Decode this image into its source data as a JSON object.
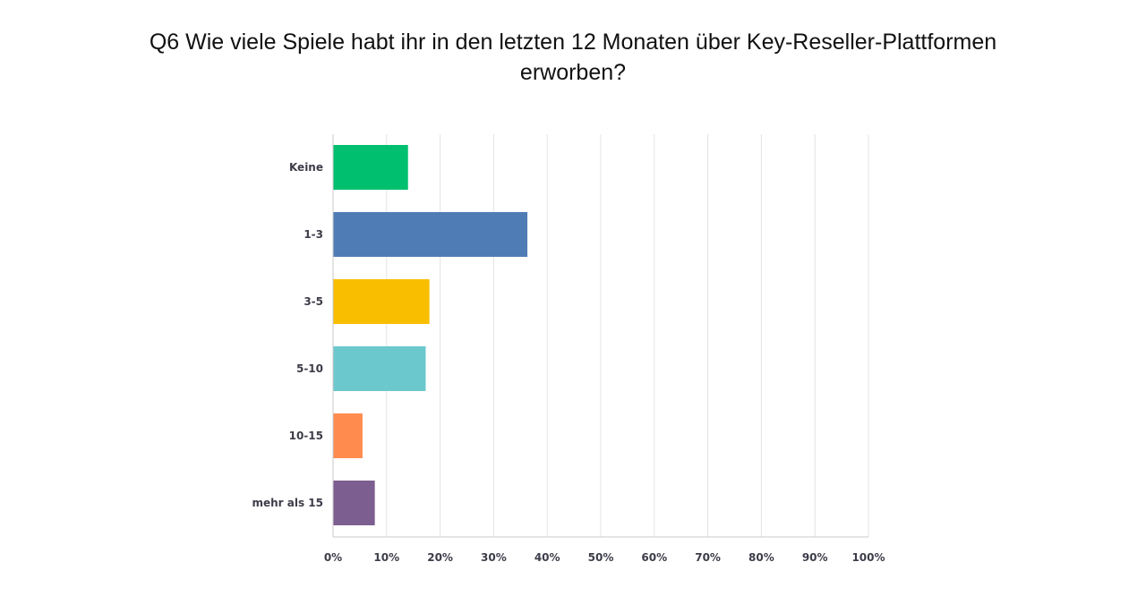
{
  "chart_data": {
    "type": "bar",
    "orientation": "horizontal",
    "title_lines": [
      "Q6 Wie viele Spiele habt ihr in den letzten 12 Monaten über Key-Reseller-Plattformen",
      "erworben?"
    ],
    "categories": [
      "Keine",
      "1-3",
      "3-5",
      "5-10",
      "10-15",
      "mehr als 15"
    ],
    "values": [
      14,
      36.3,
      18,
      17.3,
      5.5,
      7.8
    ],
    "colors": [
      "#00BF6F",
      "#507CB6",
      "#F9BE00",
      "#6BC8CD",
      "#FF8B4F",
      "#7D5E90"
    ],
    "xlim": [
      0,
      100
    ],
    "x_ticks": [
      "0%",
      "10%",
      "20%",
      "30%",
      "40%",
      "50%",
      "60%",
      "70%",
      "80%",
      "90%",
      "100%"
    ],
    "grid": true,
    "unit": "%"
  }
}
